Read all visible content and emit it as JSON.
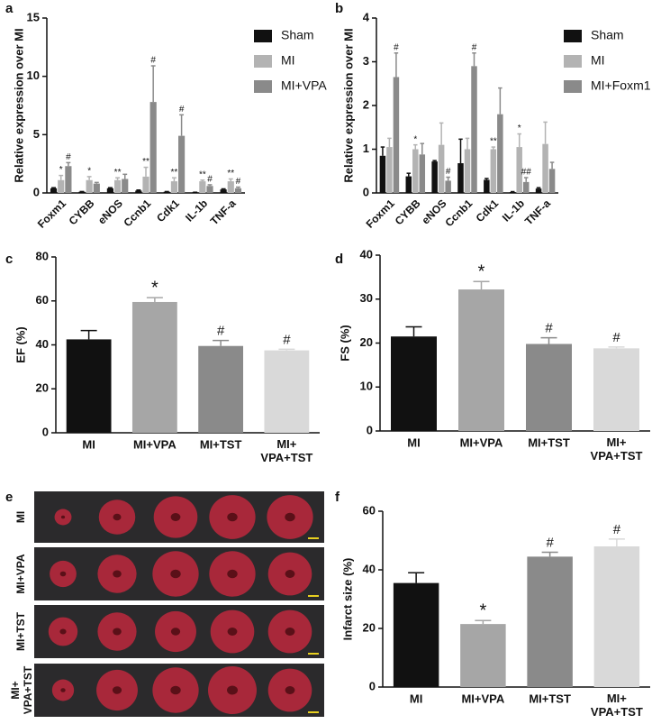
{
  "chart_data": [
    {
      "type": "grouped_bar",
      "panel": "a",
      "y_label": "Relative expression over MI",
      "legend": "right",
      "categories": [
        "Foxm1",
        "CYBB",
        "eNOS",
        "Ccnb1",
        "Cdk1",
        "IL-1b",
        "TNF-a"
      ],
      "ylim": [
        0,
        15
      ],
      "yticks": [
        0,
        5,
        10,
        15
      ],
      "series": [
        {
          "name": "Sham",
          "color": "#111111",
          "values": [
            0.4,
            0.1,
            0.4,
            0.2,
            0.1,
            0.05,
            0.3
          ],
          "errors": [
            0.05,
            0.02,
            0.05,
            0.05,
            0.02,
            0.01,
            0.05
          ],
          "annotations": [
            null,
            null,
            null,
            null,
            null,
            null,
            null
          ]
        },
        {
          "name": "MI",
          "color": "#b3b3b3",
          "values": [
            1.1,
            1.1,
            1.1,
            1.4,
            1.0,
            1.0,
            1.0
          ],
          "errors": [
            0.4,
            0.3,
            0.2,
            0.8,
            0.3,
            0.1,
            0.2
          ],
          "annotations": [
            "*",
            "*",
            "**",
            "**",
            "**",
            "**",
            "**"
          ]
        },
        {
          "name": "MI+VPA",
          "color": "#8a8a8a",
          "values": [
            2.3,
            0.8,
            1.2,
            7.8,
            4.9,
            0.6,
            0.4
          ],
          "errors": [
            0.3,
            0.1,
            0.4,
            3.1,
            1.8,
            0.1,
            0.1
          ],
          "annotations": [
            "#",
            null,
            null,
            "#",
            "#",
            "#",
            "#"
          ]
        }
      ]
    },
    {
      "type": "grouped_bar",
      "panel": "b",
      "y_label": "Relative expression over MI",
      "legend": "right",
      "categories": [
        "Foxm1",
        "CYBB",
        "eNOS",
        "Ccnb1",
        "Cdk1",
        "IL-1b",
        "TNF-a"
      ],
      "ylim": [
        0,
        4
      ],
      "yticks": [
        0,
        1,
        2,
        3,
        4
      ],
      "series": [
        {
          "name": "Sham",
          "color": "#111111",
          "values": [
            0.85,
            0.38,
            0.72,
            0.68,
            0.3,
            0.02,
            0.1
          ],
          "errors": [
            0.2,
            0.07,
            0.02,
            0.55,
            0.03,
            0.01,
            0.02
          ],
          "annotations": [
            null,
            null,
            null,
            null,
            null,
            null,
            null
          ]
        },
        {
          "name": "MI",
          "color": "#b3b3b3",
          "values": [
            1.05,
            1.0,
            1.1,
            1.0,
            1.0,
            1.05,
            1.12
          ],
          "errors": [
            0.2,
            0.1,
            0.5,
            0.25,
            0.05,
            0.3,
            0.5
          ],
          "annotations": [
            null,
            "*",
            null,
            null,
            "**",
            "*",
            null
          ]
        },
        {
          "name": "MI+Foxm1",
          "color": "#8a8a8a",
          "values": [
            2.65,
            0.88,
            0.28,
            2.9,
            1.8,
            0.25,
            0.55
          ],
          "errors": [
            0.55,
            0.25,
            0.08,
            0.3,
            0.6,
            0.1,
            0.15
          ],
          "annotations": [
            "#",
            null,
            "#",
            "#",
            null,
            "##",
            null
          ]
        }
      ]
    },
    {
      "type": "bar",
      "panel": "c",
      "y_label": "EF (%)",
      "categories": [
        "MI",
        "MI+VPA",
        "MI+TST",
        "MI+\nVPA+TST"
      ],
      "values": [
        42.5,
        59.5,
        39.5,
        37.5
      ],
      "errors": [
        4,
        2,
        2.5,
        0.5
      ],
      "annotations": [
        null,
        "*",
        "#",
        "#"
      ],
      "colors": [
        "#111111",
        "#a6a6a6",
        "#8a8a8a",
        "#d9d9d9"
      ],
      "ylim": [
        0,
        80
      ],
      "yticks": [
        0,
        20,
        40,
        60,
        80
      ]
    },
    {
      "type": "bar",
      "panel": "d",
      "y_label": "FS (%)",
      "categories": [
        "MI",
        "MI+VPA",
        "MI+TST",
        "MI+\nVPA+TST"
      ],
      "values": [
        21.5,
        32.2,
        19.8,
        18.8
      ],
      "errors": [
        2.2,
        1.8,
        1.4,
        0.3
      ],
      "annotations": [
        null,
        "*",
        "#",
        "#"
      ],
      "colors": [
        "#111111",
        "#a6a6a6",
        "#8a8a8a",
        "#d9d9d9"
      ],
      "ylim": [
        0,
        40
      ],
      "yticks": [
        0,
        10,
        20,
        30,
        40
      ]
    },
    {
      "type": "bar",
      "panel": "f",
      "y_label": "Infarct size (%)",
      "categories": [
        "MI",
        "MI+VPA",
        "MI+TST",
        "MI+\nVPA+TST"
      ],
      "values": [
        35.5,
        21.5,
        44.5,
        48
      ],
      "errors": [
        3.5,
        1.2,
        1.5,
        2.5
      ],
      "annotations": [
        null,
        "*",
        "#",
        "#"
      ],
      "colors": [
        "#111111",
        "#a6a6a6",
        "#8a8a8a",
        "#d9d9d9"
      ],
      "ylim": [
        0,
        60
      ],
      "yticks": [
        0,
        20,
        40,
        60
      ]
    }
  ],
  "panel_e": {
    "panel": "e",
    "row_labels": [
      "MI",
      "MI+VPA",
      "MI+TST",
      "MI+\nVPA+TST"
    ]
  }
}
